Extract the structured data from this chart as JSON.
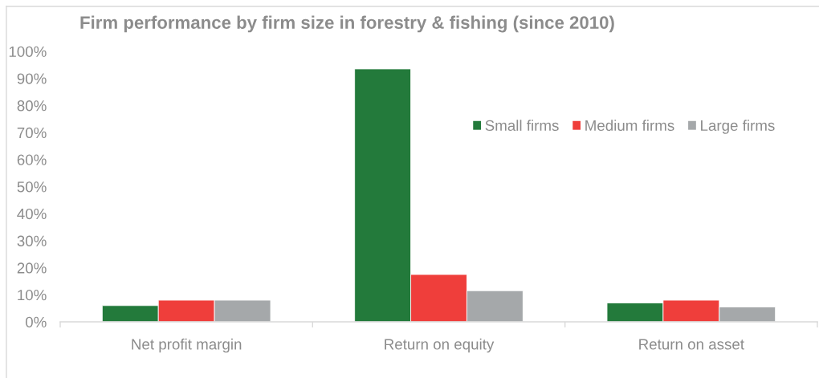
{
  "chart_data": {
    "type": "bar",
    "title": "Firm performance by firm size in forestry & fishing (since 2010)",
    "categories": [
      "Net profit margin",
      "Return on equity",
      "Return on asset"
    ],
    "series": [
      {
        "name": "Small firms",
        "color": "#237a3b",
        "values": [
          6,
          93.5,
          7
        ]
      },
      {
        "name": "Medium firms",
        "color": "#ef3e3b",
        "values": [
          8,
          17.5,
          8
        ]
      },
      {
        "name": "Large firms",
        "color": "#a5a8aa",
        "values": [
          8,
          11.5,
          5.5
        ]
      }
    ],
    "ylim": [
      0,
      100
    ],
    "yticks": [
      {
        "value": 0,
        "label": "0%"
      },
      {
        "value": 10,
        "label": "10%"
      },
      {
        "value": 20,
        "label": "20%"
      },
      {
        "value": 30,
        "label": "30%"
      },
      {
        "value": 40,
        "label": "40%"
      },
      {
        "value": 50,
        "label": "50%"
      },
      {
        "value": 60,
        "label": "60%"
      },
      {
        "value": 70,
        "label": "70%"
      },
      {
        "value": 80,
        "label": "80%"
      },
      {
        "value": 90,
        "label": "90%"
      },
      {
        "value": 100,
        "label": "100%"
      }
    ],
    "grid": false,
    "legend": "top right"
  }
}
